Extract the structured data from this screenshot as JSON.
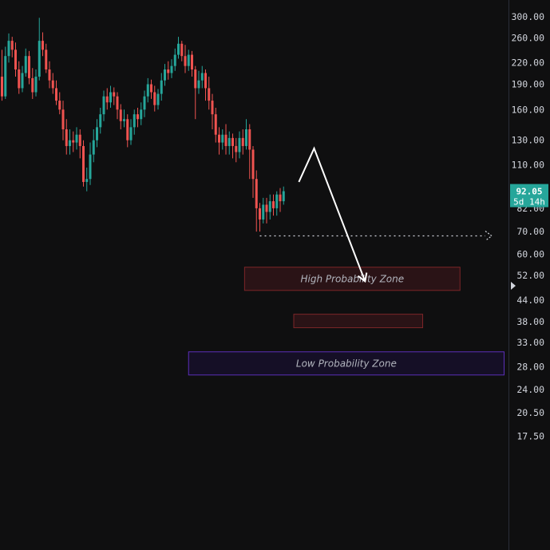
{
  "chart_data": {
    "type": "candlestick",
    "y_scale": "log",
    "y_ticks": [
      {
        "value": 300,
        "label": "300.00"
      },
      {
        "value": 260,
        "label": "260.00"
      },
      {
        "value": 220,
        "label": "220.00"
      },
      {
        "value": 190,
        "label": "190.00"
      },
      {
        "value": 160,
        "label": "160.00"
      },
      {
        "value": 130,
        "label": "130.00"
      },
      {
        "value": 110,
        "label": "110.00"
      },
      {
        "value": 82,
        "label": "82.00"
      },
      {
        "value": 70,
        "label": "70.00"
      },
      {
        "value": 60,
        "label": "60.00"
      },
      {
        "value": 52,
        "label": "52.00"
      },
      {
        "value": 44,
        "label": "44.00"
      },
      {
        "value": 38,
        "label": "38.00"
      },
      {
        "value": 33,
        "label": "33.00"
      },
      {
        "value": 28,
        "label": "28.00"
      },
      {
        "value": 24,
        "label": "24.00"
      },
      {
        "value": 20.5,
        "label": "20.50"
      },
      {
        "value": 17.5,
        "label": "17.50"
      }
    ],
    "candles": [
      [
        200,
        175,
        240,
        170
      ],
      [
        175,
        230,
        245,
        172
      ],
      [
        230,
        255,
        268,
        220
      ],
      [
        255,
        240,
        262,
        228
      ],
      [
        240,
        210,
        252,
        200
      ],
      [
        210,
        185,
        222,
        178
      ],
      [
        185,
        205,
        215,
        180
      ],
      [
        205,
        230,
        242,
        200
      ],
      [
        230,
        198,
        238,
        190
      ],
      [
        198,
        180,
        212,
        172
      ],
      [
        180,
        200,
        210,
        175
      ],
      [
        200,
        255,
        298,
        195
      ],
      [
        255,
        240,
        270,
        230
      ],
      [
        240,
        210,
        250,
        205
      ],
      [
        210,
        195,
        222,
        185
      ],
      [
        195,
        185,
        205,
        178
      ],
      [
        185,
        170,
        195,
        165
      ],
      [
        170,
        160,
        180,
        155
      ],
      [
        160,
        140,
        170,
        130
      ],
      [
        140,
        125,
        150,
        118
      ],
      [
        125,
        130,
        140,
        118
      ],
      [
        130,
        128,
        138,
        120
      ],
      [
        128,
        135,
        142,
        122
      ],
      [
        135,
        125,
        140,
        115
      ],
      [
        125,
        98,
        130,
        95
      ],
      [
        98,
        100,
        108,
        92
      ],
      [
        100,
        118,
        128,
        96
      ],
      [
        118,
        130,
        140,
        112
      ],
      [
        130,
        142,
        150,
        124
      ],
      [
        142,
        155,
        162,
        136
      ],
      [
        155,
        175,
        182,
        148
      ],
      [
        175,
        168,
        185,
        160
      ],
      [
        168,
        180,
        188,
        162
      ],
      [
        180,
        175,
        186,
        165
      ],
      [
        175,
        160,
        180,
        150
      ],
      [
        160,
        148,
        166,
        140
      ],
      [
        148,
        150,
        160,
        142
      ],
      [
        150,
        130,
        155,
        124
      ],
      [
        130,
        142,
        150,
        126
      ],
      [
        142,
        155,
        160,
        135
      ],
      [
        155,
        150,
        162,
        142
      ],
      [
        150,
        160,
        168,
        144
      ],
      [
        160,
        175,
        182,
        152
      ],
      [
        175,
        190,
        198,
        168
      ],
      [
        190,
        180,
        196,
        172
      ],
      [
        180,
        165,
        188,
        158
      ],
      [
        165,
        178,
        184,
        160
      ],
      [
        178,
        195,
        205,
        170
      ],
      [
        195,
        210,
        218,
        188
      ],
      [
        210,
        205,
        222,
        196
      ],
      [
        205,
        215,
        225,
        198
      ],
      [
        215,
        232,
        242,
        208
      ],
      [
        232,
        250,
        262,
        226
      ],
      [
        250,
        230,
        255,
        222
      ],
      [
        230,
        215,
        248,
        205
      ],
      [
        215,
        232,
        240,
        208
      ],
      [
        232,
        210,
        238,
        200
      ],
      [
        210,
        185,
        215,
        150
      ],
      [
        185,
        195,
        208,
        178
      ],
      [
        195,
        205,
        215,
        185
      ],
      [
        205,
        185,
        210,
        170
      ],
      [
        185,
        170,
        200,
        160
      ],
      [
        170,
        155,
        178,
        140
      ],
      [
        155,
        135,
        162,
        128
      ],
      [
        135,
        128,
        142,
        118
      ],
      [
        128,
        135,
        140,
        122
      ],
      [
        135,
        125,
        145,
        118
      ],
      [
        125,
        132,
        138,
        118
      ],
      [
        132,
        125,
        136,
        115
      ],
      [
        125,
        120,
        132,
        112
      ],
      [
        120,
        132,
        138,
        115
      ],
      [
        132,
        125,
        140,
        118
      ],
      [
        125,
        140,
        150,
        122
      ],
      [
        140,
        122,
        145,
        100
      ],
      [
        122,
        100,
        125,
        88
      ],
      [
        100,
        82,
        106,
        70
      ],
      [
        82,
        76,
        85,
        70
      ],
      [
        76,
        84,
        88,
        74
      ],
      [
        84,
        80,
        88,
        74
      ],
      [
        80,
        86,
        90,
        76
      ],
      [
        86,
        82,
        90,
        78
      ],
      [
        82,
        90,
        92,
        78
      ],
      [
        90,
        86,
        94,
        80
      ],
      [
        86,
        92.05,
        95,
        84
      ]
    ],
    "current_price": {
      "price": 92.05,
      "value_label": "92.05",
      "countdown_label": "5d 14h"
    },
    "projection_path": [
      {
        "idx": 87.5,
        "price": 98
      },
      {
        "idx": 92,
        "price": 123
      },
      {
        "idx": 107,
        "price": 50
      }
    ],
    "support_level": {
      "price": 68,
      "from_idx": 76
    },
    "zones": [
      {
        "name": "high-probability-zone",
        "label": "High Probability Zone",
        "top": 55,
        "bottom": 47,
        "from_idx": 71.5,
        "to_idx": 135,
        "stroke": "#7c2528",
        "fill": "#2a1316"
      },
      {
        "name": "mid-zone",
        "label": "",
        "top": 40,
        "bottom": 36.5,
        "from_idx": 86,
        "to_idx": 124,
        "stroke": "#7c2528",
        "fill": "#2a1316"
      },
      {
        "name": "low-probability-zone",
        "label": "Low Probability Zone",
        "top": 31,
        "bottom": 26.5,
        "from_idx": 55,
        "to_idx": 148,
        "stroke": "#5b2fb8",
        "fill": "#150f26"
      }
    ],
    "colors": {
      "up": "#26a69a",
      "down": "#ef5350",
      "background": "#0f0f10",
      "axis_text": "#d1d4dc",
      "projection": "#ffffff",
      "support": "#d1d4dc",
      "price_tag": "#26a69a",
      "zone_text": "#b2b5be"
    }
  }
}
